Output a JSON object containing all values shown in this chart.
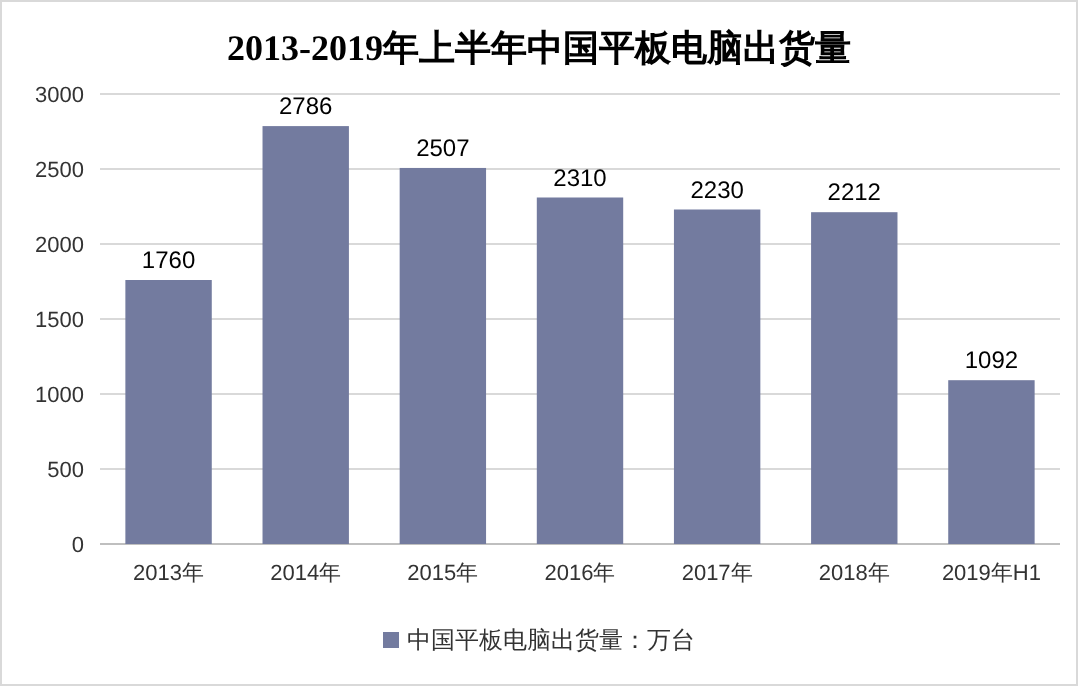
{
  "chart_data": {
    "type": "bar",
    "title": "2013-2019年上半年中国平板电脑出货量",
    "categories": [
      "2013年",
      "2014年",
      "2015年",
      "2016年",
      "2017年",
      "2018年",
      "2019年H1"
    ],
    "series": [
      {
        "name": "中国平板电脑出货量：万台",
        "color": "#737b9f",
        "values": [
          1760,
          2786,
          2507,
          2310,
          2230,
          2212,
          1092
        ]
      }
    ],
    "ylim": [
      0,
      3000
    ],
    "yticks": [
      0,
      500,
      1000,
      1500,
      2000,
      2500,
      3000
    ],
    "grid": "y",
    "legend": "bottom",
    "data_labels": true
  }
}
